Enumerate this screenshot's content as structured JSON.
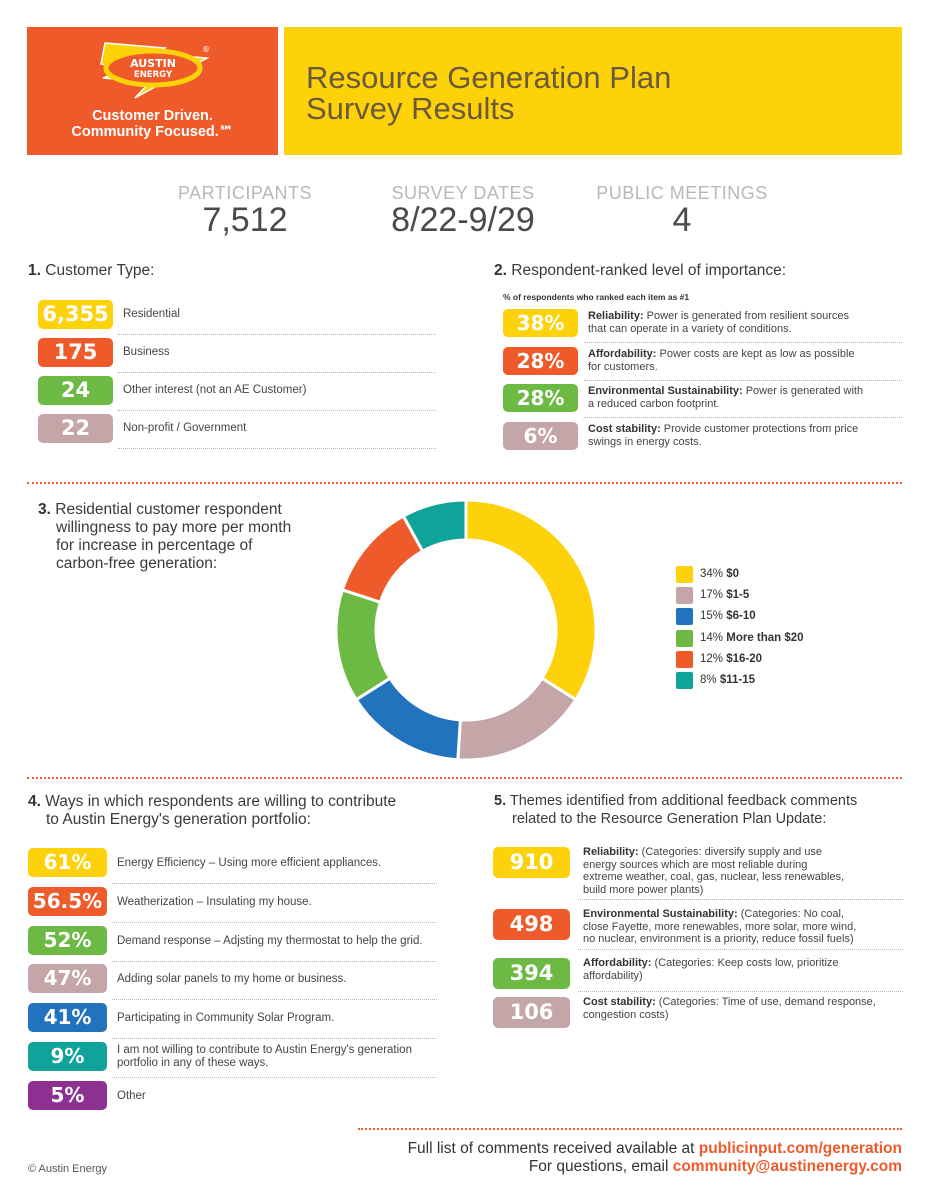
{
  "header": {
    "logo_text": [
      "AUSTIN",
      "ENERGY"
    ],
    "logo_mark": "®",
    "tagline": [
      "Customer Driven.",
      "Community Focused.℠"
    ],
    "title": [
      "Resource Generation Plan",
      "Survey Results"
    ]
  },
  "stats": {
    "participants": {
      "label": "PARTICIPANTS",
      "value": "7,512"
    },
    "survey_dates": {
      "label": "SURVEY DATES",
      "value": "8/22-9/29"
    },
    "public_meetings": {
      "label": "PUBLIC MEETINGS",
      "value": "4"
    }
  },
  "section1": {
    "number": "1.",
    "title": "Customer Type:",
    "rows": [
      {
        "value": "6,355",
        "label": "Residential",
        "color": "#fdd20a"
      },
      {
        "value": "175",
        "label": "Business",
        "color": "#ef5a2a"
      },
      {
        "value": "24",
        "label": "Other interest (not an AE Customer)",
        "color": "#6cb944"
      },
      {
        "value": "22",
        "label": "Non-profit / Government",
        "color": "#c4a5a8"
      }
    ]
  },
  "section2": {
    "number": "2.",
    "title": "Respondent-ranked level of importance:",
    "note": "% of respondents who ranked each item as #1",
    "rows": [
      {
        "value": "38%",
        "name": "Reliability:",
        "desc": " Power is generated from resilient sources",
        "desc2": "that can operate in a variety of conditions.",
        "color": "#fdd20a"
      },
      {
        "value": "28%",
        "name": "Affordability:",
        "desc": " Power costs are kept as low as possible",
        "desc2": "for customers.",
        "color": "#ef5a2a"
      },
      {
        "value": "28%",
        "name": "Environmental Sustainability:",
        "desc": " Power is generated with",
        "desc2": "a reduced carbon footprint.",
        "color": "#6cb944"
      },
      {
        "value": "6%",
        "name": "Cost stability:",
        "desc": " Provide customer protections from price",
        "desc2": "swings in energy costs.",
        "color": "#c4a5a8"
      }
    ]
  },
  "section3": {
    "number": "3.",
    "title": [
      "Residential customer respondent",
      "willingness to pay more per month",
      "for increase in percentage of",
      "carbon-free generation:"
    ]
  },
  "chart_data": {
    "type": "pie",
    "variant": "donut",
    "title": "Residential customer respondent willingness to pay more per month for increase in percentage of carbon-free generation:",
    "categories": [
      "$0",
      "$1-5",
      "$6-10",
      "More than $20",
      "$16-20",
      "$11-15"
    ],
    "values": [
      34,
      17,
      15,
      14,
      12,
      8
    ],
    "labels": [
      "34%",
      "17%",
      "15%",
      "14%",
      "12%",
      "8%"
    ],
    "colors": [
      "#fdd20a",
      "#c4a5a8",
      "#2173be",
      "#6cb944",
      "#ef5a2a",
      "#0fa39a"
    ],
    "legend_position": "right"
  },
  "section4": {
    "number": "4.",
    "title": [
      "Ways in which respondents are willing to contribute",
      "to Austin Energy's generation portfolio:"
    ],
    "rows": [
      {
        "value": "61%",
        "label": "Energy Efficiency – Using more efficient appliances.",
        "label2": "",
        "color": "#fdd20a"
      },
      {
        "value": "56.5%",
        "label": "Weatherization – Insulating my house.",
        "label2": "",
        "color": "#ef5a2a"
      },
      {
        "value": "52%",
        "label": "Demand response – Adjsting my thermostat to help the grid.",
        "label2": "",
        "color": "#6cb944"
      },
      {
        "value": "47%",
        "label": "Adding solar panels to my home or business.",
        "label2": "",
        "color": "#c4a5a8"
      },
      {
        "value": "41%",
        "label": "Participating in Community Solar Program.",
        "label2": "",
        "color": "#2173be"
      },
      {
        "value": "9%",
        "label": "I am not willing to contribute to Austin Energy's generation",
        "label2": "portfolio in any of these ways.",
        "color": "#0fa39a"
      },
      {
        "value": "5%",
        "label": "Other",
        "label2": "",
        "color": "#8e2f92"
      }
    ]
  },
  "section5": {
    "number": "5.",
    "title": [
      "Themes identified from additional feedback comments",
      "related to the Resource Generation Plan Update:"
    ],
    "rows": [
      {
        "value": "910",
        "name": "Reliability:",
        "lines": [
          " (Categories: diversify supply and use",
          "energy sources which are most reliable during",
          "extreme weather, coal, gas, nuclear, less renewables,",
          "build more power plants)"
        ],
        "color": "#fdd20a"
      },
      {
        "value": "498",
        "name": "Environmental Sustainability:",
        "lines": [
          " (Categories: No coal,",
          "close Fayette, more renewables, more solar, more wind,",
          "no nuclear, environment is a priority, reduce fossil fuels)"
        ],
        "color": "#ef5a2a"
      },
      {
        "value": "394",
        "name": "Affordability:",
        "lines": [
          " (Categories: Keep costs low, prioritize",
          "affordability)"
        ],
        "color": "#6cb944"
      },
      {
        "value": "106",
        "name": "Cost stability:",
        "lines": [
          " (Categories: Time of use, demand response,",
          "congestion costs)"
        ],
        "color": "#c4a5a8"
      }
    ]
  },
  "footer": {
    "line1_text": "Full list of comments received available at ",
    "line1_link": "publicinput.com/generation",
    "line2_text": "For questions, email ",
    "line2_link": "community@austinenergy.com",
    "copyright": "© Austin Energy"
  }
}
